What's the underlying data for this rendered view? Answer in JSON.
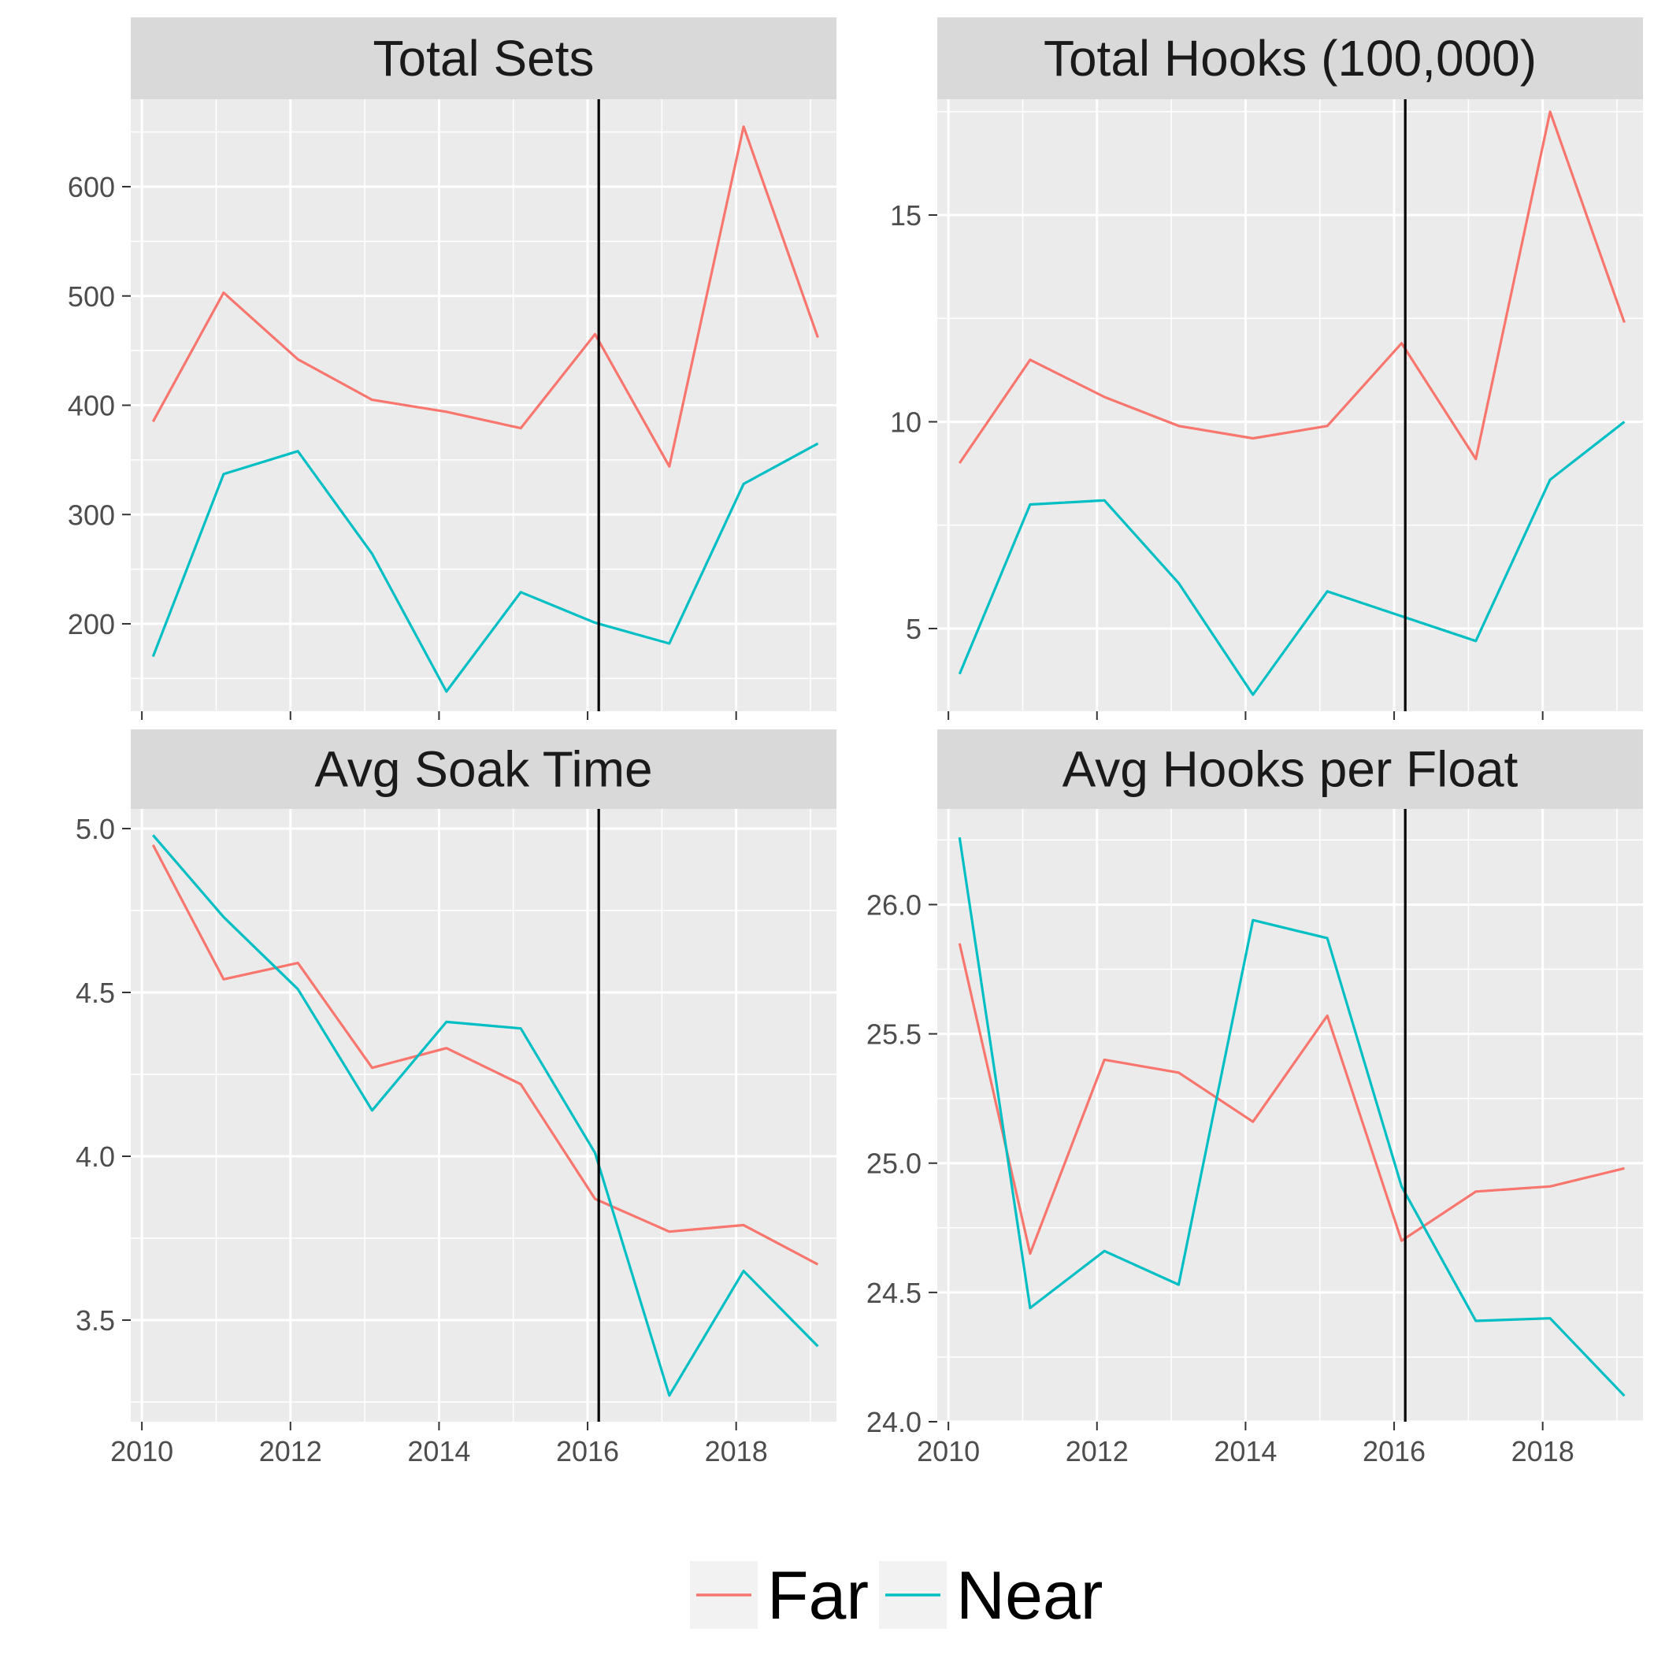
{
  "chart_data": {
    "type": "line",
    "grid": true,
    "legend_position": "bottom",
    "reference_line_x": 2016.15,
    "series_styles": [
      {
        "name": "Far",
        "color": "#F8766D"
      },
      {
        "name": "Near",
        "color": "#00BFC4"
      }
    ],
    "legend": {
      "items": [
        {
          "label": "Far",
          "color": "#F8766D"
        },
        {
          "label": "Near",
          "color": "#00BFC4"
        }
      ]
    },
    "colors": {
      "panel_bg": "#EBEBEB",
      "strip_bg": "#D9D9D9",
      "grid": "#FFFFFF",
      "ref_line": "#000000",
      "axis_tick": "#333333"
    },
    "panels": [
      {
        "title": "Total Sets",
        "xlim": [
          2009.85,
          2019.35
        ],
        "ylim": [
          120,
          680
        ],
        "x_ticks": [
          2010,
          2012,
          2014,
          2016,
          2018
        ],
        "x_tick_labels": [],
        "y_ticks": [
          200,
          300,
          400,
          500,
          600
        ],
        "y_tick_labels": [
          "200",
          "300",
          "400",
          "500",
          "600"
        ],
        "series": [
          {
            "name": "Far",
            "x": [
              2010.15,
              2011.1,
              2012.1,
              2013.1,
              2014.1,
              2015.1,
              2016.1,
              2017.1,
              2018.1,
              2019.1
            ],
            "values": [
              385,
              503,
              442,
              405,
              394,
              379,
              465,
              344,
              655,
              462
            ]
          },
          {
            "name": "Near",
            "x": [
              2010.15,
              2011.1,
              2012.1,
              2013.1,
              2014.1,
              2015.1,
              2016.1,
              2017.1,
              2018.1,
              2019.1
            ],
            "values": [
              170,
              337,
              358,
              264,
              138,
              229,
              201,
              182,
              328,
              365
            ]
          }
        ]
      },
      {
        "title": "Total Hooks (100,000)",
        "xlim": [
          2009.85,
          2019.35
        ],
        "ylim": [
          3.0,
          17.8
        ],
        "x_ticks": [
          2010,
          2012,
          2014,
          2016,
          2018
        ],
        "x_tick_labels": [],
        "y_ticks": [
          5,
          10,
          15
        ],
        "y_tick_labels": [
          "5",
          "10",
          "15"
        ],
        "series": [
          {
            "name": "Far",
            "x": [
              2010.15,
              2011.1,
              2012.1,
              2013.1,
              2014.1,
              2015.1,
              2016.1,
              2017.1,
              2018.1,
              2019.1
            ],
            "values": [
              9.0,
              11.5,
              10.6,
              9.9,
              9.6,
              9.9,
              11.9,
              9.1,
              17.5,
              12.4
            ]
          },
          {
            "name": "Near",
            "x": [
              2010.15,
              2011.1,
              2012.1,
              2013.1,
              2014.1,
              2015.1,
              2016.1,
              2017.1,
              2018.1,
              2019.1
            ],
            "values": [
              3.9,
              8.0,
              8.1,
              6.1,
              3.4,
              5.9,
              5.3,
              4.7,
              8.6,
              10.0
            ]
          }
        ]
      },
      {
        "title": "Avg Soak Time",
        "xlim": [
          2009.85,
          2019.35
        ],
        "ylim": [
          3.19,
          5.06
        ],
        "x_ticks": [
          2010,
          2012,
          2014,
          2016,
          2018
        ],
        "x_tick_labels": [
          "2010",
          "2012",
          "2014",
          "2016",
          "2018"
        ],
        "y_ticks": [
          3.5,
          4.0,
          4.5,
          5.0
        ],
        "y_tick_labels": [
          "3.5",
          "4.0",
          "4.5",
          "5.0"
        ],
        "series": [
          {
            "name": "Far",
            "x": [
              2010.15,
              2011.1,
              2012.1,
              2013.1,
              2014.1,
              2015.1,
              2016.1,
              2017.1,
              2018.1,
              2019.1
            ],
            "values": [
              4.95,
              4.54,
              4.59,
              4.27,
              4.33,
              4.22,
              3.87,
              3.77,
              3.79,
              3.67
            ]
          },
          {
            "name": "Near",
            "x": [
              2010.15,
              2011.1,
              2012.1,
              2013.1,
              2014.1,
              2015.1,
              2016.1,
              2017.1,
              2018.1,
              2019.1
            ],
            "values": [
              4.98,
              4.73,
              4.51,
              4.14,
              4.41,
              4.39,
              4.01,
              3.27,
              3.65,
              3.42
            ]
          }
        ]
      },
      {
        "title": "Avg Hooks per Float",
        "xlim": [
          2009.85,
          2019.35
        ],
        "ylim": [
          24.0,
          26.37
        ],
        "x_ticks": [
          2010,
          2012,
          2014,
          2016,
          2018
        ],
        "x_tick_labels": [
          "2010",
          "2012",
          "2014",
          "2016",
          "2018"
        ],
        "y_ticks": [
          24.0,
          24.5,
          25.0,
          25.5,
          26.0
        ],
        "y_tick_labels": [
          "24.0",
          "24.5",
          "25.0",
          "25.5",
          "26.0"
        ],
        "series": [
          {
            "name": "Far",
            "x": [
              2010.15,
              2011.1,
              2012.1,
              2013.1,
              2014.1,
              2015.1,
              2016.1,
              2017.1,
              2018.1,
              2019.1
            ],
            "values": [
              25.85,
              24.65,
              25.4,
              25.35,
              25.16,
              25.57,
              24.7,
              24.89,
              24.91,
              24.98
            ]
          },
          {
            "name": "Near",
            "x": [
              2010.15,
              2011.1,
              2012.1,
              2013.1,
              2014.1,
              2015.1,
              2016.1,
              2017.1,
              2018.1,
              2019.1
            ],
            "values": [
              26.26,
              24.44,
              24.66,
              24.53,
              25.94,
              25.87,
              24.91,
              24.39,
              24.4,
              24.1
            ]
          }
        ]
      }
    ]
  }
}
